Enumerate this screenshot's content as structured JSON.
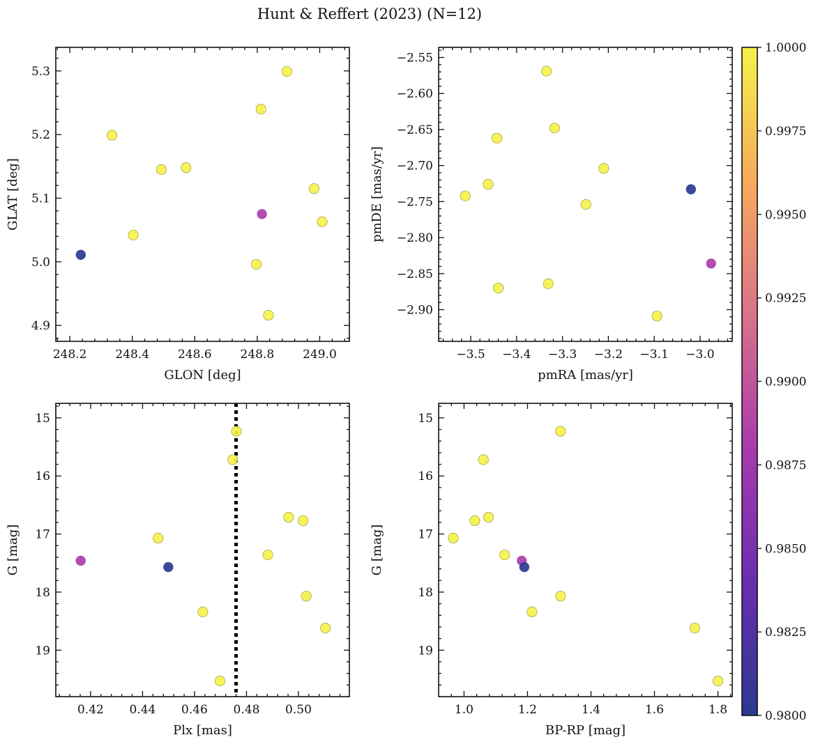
{
  "title": "Hunt & Reffert (2023) (N=12)",
  "colorbar": {
    "label": "",
    "min": 0.98,
    "max": 1.0,
    "ticks": [
      0.98,
      0.9825,
      0.985,
      0.9875,
      0.99,
      0.9925,
      0.995,
      0.9975,
      1.0
    ],
    "tick_labels": [
      "0.9800",
      "0.9825",
      "0.9850",
      "0.9875",
      "0.9900",
      "0.9925",
      "0.9950",
      "0.9975",
      "1.0000"
    ],
    "colormap": "plasma"
  },
  "chart_data": [
    {
      "type": "scatter",
      "name": "glon-glat",
      "xlabel": "GLON [deg]",
      "ylabel": "GLAT [deg]",
      "xlim": [
        248.155,
        249.095
      ],
      "ylim": [
        4.875,
        5.337
      ],
      "invert_y": false,
      "xticks": [
        248.2,
        248.4,
        248.6,
        248.8,
        249.0
      ],
      "xtick_labels": [
        "248.2",
        "248.4",
        "248.6",
        "248.8",
        "249.0"
      ],
      "yticks": [
        4.9,
        5.0,
        5.1,
        5.2,
        5.3
      ],
      "ytick_labels": [
        "4.9",
        "5.0",
        "5.1",
        "5.2",
        "5.3"
      ],
      "points": [
        {
          "x": 248.235,
          "y": 5.011,
          "c": 0.98
        },
        {
          "x": 248.335,
          "y": 5.199,
          "c": 1.0
        },
        {
          "x": 248.403,
          "y": 5.042,
          "c": 1.0
        },
        {
          "x": 248.493,
          "y": 5.145,
          "c": 1.0
        },
        {
          "x": 248.572,
          "y": 5.148,
          "c": 1.0
        },
        {
          "x": 248.797,
          "y": 4.996,
          "c": 1.0
        },
        {
          "x": 248.812,
          "y": 5.24,
          "c": 1.0
        },
        {
          "x": 248.815,
          "y": 5.075,
          "c": 0.9882
        },
        {
          "x": 248.836,
          "y": 4.916,
          "c": 1.0
        },
        {
          "x": 248.895,
          "y": 5.299,
          "c": 1.0
        },
        {
          "x": 248.982,
          "y": 5.115,
          "c": 1.0
        },
        {
          "x": 249.008,
          "y": 5.063,
          "c": 1.0
        }
      ]
    },
    {
      "type": "scatter",
      "name": "pmra-pmde",
      "xlabel": "pmRA [mas/yr]",
      "ylabel": "pmDE [mas/yr]",
      "xlim": [
        -3.57,
        -2.93
      ],
      "ylim": [
        -2.944,
        -2.536
      ],
      "invert_y": false,
      "xticks": [
        -3.5,
        -3.4,
        -3.3,
        -3.2,
        -3.1,
        -3.0
      ],
      "xtick_labels": [
        "−3.5",
        "−3.4",
        "−3.3",
        "−3.2",
        "−3.1",
        "−3.0"
      ],
      "yticks": [
        -2.9,
        -2.85,
        -2.8,
        -2.75,
        -2.7,
        -2.65,
        -2.6,
        -2.55
      ],
      "ytick_labels": [
        "−2.90",
        "−2.85",
        "−2.80",
        "−2.75",
        "−2.70",
        "−2.65",
        "−2.60",
        "−2.55"
      ],
      "points": [
        {
          "x": -3.512,
          "y": -2.742,
          "c": 1.0
        },
        {
          "x": -3.462,
          "y": -2.726,
          "c": 1.0
        },
        {
          "x": -3.443,
          "y": -2.662,
          "c": 1.0
        },
        {
          "x": -3.44,
          "y": -2.87,
          "c": 1.0
        },
        {
          "x": -3.335,
          "y": -2.569,
          "c": 1.0
        },
        {
          "x": -3.331,
          "y": -2.864,
          "c": 1.0
        },
        {
          "x": -3.317,
          "y": -2.648,
          "c": 1.0
        },
        {
          "x": -3.249,
          "y": -2.754,
          "c": 1.0
        },
        {
          "x": -3.21,
          "y": -2.704,
          "c": 1.0
        },
        {
          "x": -3.094,
          "y": -2.909,
          "c": 1.0
        },
        {
          "x": -3.02,
          "y": -2.733,
          "c": 0.98
        },
        {
          "x": -2.976,
          "y": -2.836,
          "c": 0.9882
        }
      ]
    },
    {
      "type": "scatter",
      "name": "plx-g",
      "xlabel": "Plx [mas]",
      "ylabel": "G [mag]",
      "xlim": [
        0.4066,
        0.5196
      ],
      "ylim": [
        14.75,
        19.8
      ],
      "invert_y": true,
      "vline": 0.476,
      "xticks": [
        0.42,
        0.44,
        0.46,
        0.48,
        0.5
      ],
      "xtick_labels": [
        "0.42",
        "0.44",
        "0.46",
        "0.48",
        "0.50"
      ],
      "yticks": [
        15,
        16,
        17,
        18,
        19
      ],
      "ytick_labels": [
        "15",
        "16",
        "17",
        "18",
        "19"
      ],
      "points": [
        {
          "x": 0.4162,
          "y": 17.46,
          "c": 0.9882
        },
        {
          "x": 0.446,
          "y": 17.07,
          "c": 1.0
        },
        {
          "x": 0.4499,
          "y": 17.57,
          "c": 0.98
        },
        {
          "x": 0.4632,
          "y": 18.34,
          "c": 1.0
        },
        {
          "x": 0.4698,
          "y": 19.53,
          "c": 1.0
        },
        {
          "x": 0.4747,
          "y": 15.72,
          "c": 1.0
        },
        {
          "x": 0.4761,
          "y": 15.23,
          "c": 1.0
        },
        {
          "x": 0.4882,
          "y": 17.36,
          "c": 1.0
        },
        {
          "x": 0.4962,
          "y": 16.71,
          "c": 1.0
        },
        {
          "x": 0.5018,
          "y": 16.77,
          "c": 1.0
        },
        {
          "x": 0.503,
          "y": 18.07,
          "c": 1.0
        },
        {
          "x": 0.5104,
          "y": 18.62,
          "c": 1.0
        }
      ]
    },
    {
      "type": "scatter",
      "name": "bprp-g",
      "xlabel": "BP-RP [mag]",
      "ylabel": "G [mag]",
      "xlim": [
        0.92,
        1.845
      ],
      "ylim": [
        14.75,
        19.8
      ],
      "invert_y": true,
      "xticks": [
        1.0,
        1.2,
        1.4,
        1.6,
        1.8
      ],
      "xtick_labels": [
        "1.0",
        "1.2",
        "1.4",
        "1.6",
        "1.8"
      ],
      "yticks": [
        15,
        16,
        17,
        18,
        19
      ],
      "ytick_labels": [
        "15",
        "16",
        "17",
        "18",
        "19"
      ],
      "points": [
        {
          "x": 0.966,
          "y": 17.07,
          "c": 1.0
        },
        {
          "x": 1.034,
          "y": 16.77,
          "c": 1.0
        },
        {
          "x": 1.061,
          "y": 15.72,
          "c": 1.0
        },
        {
          "x": 1.077,
          "y": 16.71,
          "c": 1.0
        },
        {
          "x": 1.128,
          "y": 17.36,
          "c": 1.0
        },
        {
          "x": 1.182,
          "y": 17.46,
          "c": 0.9882
        },
        {
          "x": 1.19,
          "y": 17.57,
          "c": 0.98
        },
        {
          "x": 1.214,
          "y": 18.34,
          "c": 1.0
        },
        {
          "x": 1.304,
          "y": 15.23,
          "c": 1.0
        },
        {
          "x": 1.304,
          "y": 18.07,
          "c": 1.0
        },
        {
          "x": 1.727,
          "y": 18.62,
          "c": 1.0
        },
        {
          "x": 1.8,
          "y": 19.53,
          "c": 1.0
        }
      ]
    }
  ]
}
